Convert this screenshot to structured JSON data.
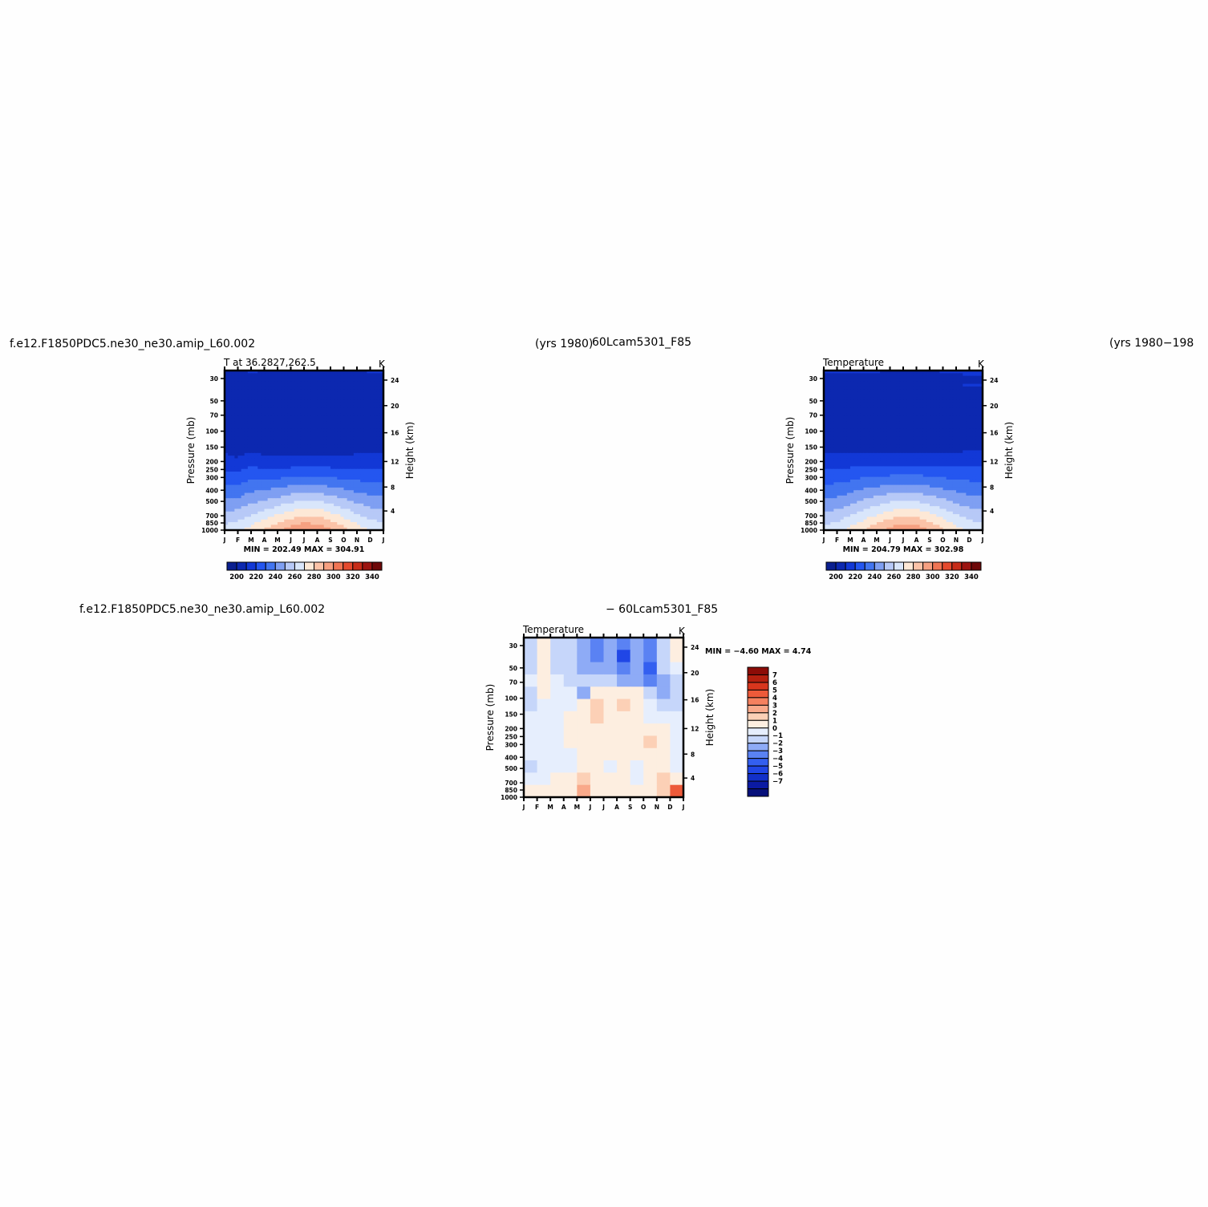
{
  "header": {
    "case_left": "f.e12.F1850PDC5.ne30_ne30.amip_L60.002",
    "years_left": "(yrs  1980)",
    "case_right": "60Lcam5301_F85",
    "years_right": "(yrs  1980−198",
    "diff_left": "f.e12.F1850PDC5.ne30_ne30.amip_L60.002",
    "diff_right": "−  60Lcam5301_F85"
  },
  "colors": {
    "abs_levels": [
      "#0a1f8f",
      "#0c28b0",
      "#1238d6",
      "#2456f0",
      "#4275f0",
      "#7f9ff2",
      "#b7c9f7",
      "#d9e6fb",
      "#fde8d6",
      "#fbc3a8",
      "#f6a081",
      "#f07554",
      "#e54a2e",
      "#c72c18",
      "#9c1410",
      "#6e0808"
    ],
    "diff_levels": [
      "#07107a",
      "#0b1aa3",
      "#1230c9",
      "#2046e6",
      "#335ff0",
      "#5a82f3",
      "#8eabf6",
      "#c6d6fa",
      "#e6eefd",
      "#fdeee0",
      "#fcd0b6",
      "#f9a98a",
      "#f5815f",
      "#ed5a3a",
      "#d8361d",
      "#b5200f",
      "#8c0c07"
    ]
  },
  "chart_data": [
    {
      "type": "heatmap",
      "id": "case1",
      "title": "T at 36.2827,262.5",
      "units": "K",
      "ylabel": "Pressure (mb)",
      "y2label": "Height (km)",
      "x_ticks": [
        "J",
        "F",
        "M",
        "A",
        "M",
        "J",
        "J",
        "A",
        "S",
        "O",
        "N",
        "D",
        "J"
      ],
      "y_ticks": [
        "30",
        "50",
        "70",
        "100",
        "150",
        "200",
        "250",
        "300",
        "400",
        "500",
        "700",
        "850",
        "1000"
      ],
      "y2_ticks": [
        "24",
        "20",
        "16",
        "12",
        "8",
        "4"
      ],
      "stats": "MIN = 202.49  MAX = 304.91",
      "min": 202.49,
      "max": 304.91,
      "colorbar_labels": [
        "200",
        "220",
        "240",
        "260",
        "280",
        "300",
        "320",
        "340"
      ],
      "cold_core": [
        205,
        203,
        207,
        204,
        203,
        202.5,
        203,
        203,
        203,
        204,
        205,
        206,
        207
      ],
      "surface": [
        270,
        273,
        279,
        286,
        293,
        300,
        304.9,
        303,
        297,
        289,
        281,
        274,
        271
      ]
    },
    {
      "type": "heatmap",
      "id": "case2",
      "title": "Temperature",
      "units": "K",
      "ylabel": "Pressure (mb)",
      "y2label": "Height (km)",
      "x_ticks": [
        "J",
        "F",
        "M",
        "A",
        "M",
        "J",
        "J",
        "A",
        "S",
        "O",
        "N",
        "D",
        "J"
      ],
      "y_ticks": [
        "30",
        "50",
        "70",
        "100",
        "150",
        "200",
        "250",
        "300",
        "400",
        "500",
        "700",
        "850",
        "1000"
      ],
      "y2_ticks": [
        "24",
        "20",
        "16",
        "12",
        "8",
        "4"
      ],
      "stats": "MIN = 204.79  MAX = 302.98",
      "min": 204.79,
      "max": 302.98,
      "colorbar_labels": [
        "200",
        "220",
        "240",
        "260",
        "280",
        "300",
        "320",
        "340"
      ],
      "cold_core": [
        207,
        206,
        206,
        207,
        206,
        205,
        204.8,
        205,
        205,
        206,
        207,
        208,
        208
      ],
      "surface": [
        269,
        272,
        278,
        285,
        292,
        299,
        303,
        301,
        295,
        287,
        279,
        273,
        270
      ]
    },
    {
      "type": "heatmap",
      "id": "difference",
      "title": "Temperature",
      "units": "K",
      "ylabel": "Pressure (mb)",
      "y2label": "Height (km)",
      "x_ticks": [
        "J",
        "F",
        "M",
        "A",
        "M",
        "J",
        "J",
        "A",
        "S",
        "O",
        "N",
        "D",
        "J"
      ],
      "y_ticks": [
        "30",
        "50",
        "70",
        "100",
        "150",
        "200",
        "250",
        "300",
        "400",
        "500",
        "700",
        "850",
        "1000"
      ],
      "y2_ticks": [
        "24",
        "20",
        "16",
        "12",
        "8",
        "4"
      ],
      "stats": "MIN =   −4.60  MAX =    4.74",
      "min": -4.6,
      "max": 4.74,
      "colorbar_labels": [
        "7",
        "6",
        "5",
        "4",
        "3",
        "2",
        "1",
        "0",
        "−1",
        "−2",
        "−3",
        "−4",
        "−5",
        "−6",
        "−7"
      ],
      "field": [
        [
          -1.5,
          0.3,
          -1.0,
          -1.0,
          -2.0,
          -3.0,
          -2.0,
          -3.5,
          -2.0,
          -3.0,
          -1.0,
          0.5
        ],
        [
          -1.5,
          0.5,
          -1.2,
          -1.2,
          -2.5,
          -3.0,
          -2.2,
          -4.6,
          -2.5,
          -3.2,
          -1.2,
          0.3
        ],
        [
          -1.0,
          0.6,
          -1.0,
          -1.5,
          -2.0,
          -2.5,
          -2.0,
          -3.5,
          -2.5,
          -3.8,
          -1.5,
          0.0
        ],
        [
          -0.8,
          0.6,
          -0.8,
          -1.2,
          -1.5,
          -1.5,
          -1.0,
          -2.0,
          -1.8,
          -3.0,
          -2.5,
          -1.0
        ],
        [
          -1.0,
          0.4,
          -0.5,
          -0.8,
          -2.5,
          0.4,
          0.8,
          0.5,
          0.6,
          -1.0,
          -2.0,
          -1.5
        ],
        [
          -1.2,
          -0.5,
          -0.6,
          -0.3,
          0.6,
          1.5,
          0.8,
          1.8,
          0.8,
          -0.5,
          -1.0,
          -1.0
        ],
        [
          -0.8,
          -0.6,
          -0.5,
          0.4,
          0.8,
          1.5,
          0.8,
          1.2,
          0.6,
          -0.2,
          -0.8,
          -0.8
        ],
        [
          -0.5,
          -0.4,
          -0.3,
          0.6,
          1.0,
          0.8,
          0.6,
          0.5,
          0.4,
          0.8,
          0.2,
          -0.5
        ],
        [
          -0.5,
          -0.3,
          -0.6,
          0.8,
          0.6,
          0.4,
          0.3,
          0.4,
          0.5,
          1.5,
          0.5,
          -0.3
        ],
        [
          -0.6,
          -0.5,
          -0.8,
          -0.4,
          0.5,
          0.6,
          0.4,
          0.5,
          0.5,
          1.2,
          0.4,
          -0.3
        ],
        [
          -1.2,
          -0.6,
          -0.5,
          -0.2,
          0.8,
          0.6,
          -0.4,
          0.5,
          -0.3,
          0.6,
          1.0,
          -0.2
        ],
        [
          -0.5,
          -0.3,
          0.2,
          0.5,
          1.5,
          0.4,
          0.6,
          0.8,
          -0.2,
          0.4,
          1.5,
          0.5
        ],
        [
          0.2,
          0.6,
          0.4,
          0.8,
          2.5,
          0.5,
          0.8,
          0.9,
          0.3,
          0.5,
          2.0,
          4.7
        ]
      ]
    }
  ]
}
